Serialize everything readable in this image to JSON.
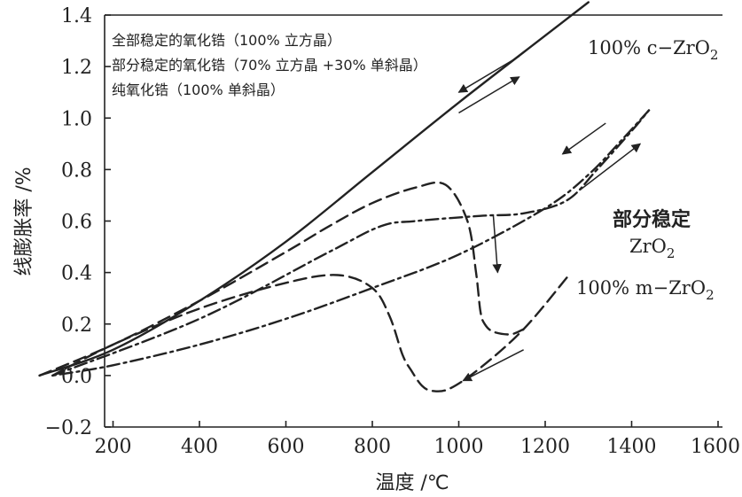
{
  "chart_data": {
    "type": "line",
    "title": "",
    "xlabel": "温度 /℃",
    "ylabel": "线膨胀率 /%",
    "xlim": [
      0,
      1600
    ],
    "ylim": [
      -0.2,
      1.4
    ],
    "x_ticks": [
      200,
      400,
      600,
      800,
      1000,
      1200,
      1400,
      1600
    ],
    "x_tick_labels": [
      "200",
      "400",
      "600",
      "800",
      "1000",
      "1200",
      "1400",
      "1600"
    ],
    "y_ticks": [
      -0.2,
      0.0,
      0.2,
      0.4,
      0.6,
      0.8,
      1.0,
      1.2,
      1.4
    ],
    "y_tick_labels": [
      "−0.2",
      "0.0",
      "0.2",
      "0.4",
      "0.6",
      "0.8",
      "1.0",
      "1.2",
      "1.4"
    ],
    "grid": false,
    "legend": {
      "placement": "top-left",
      "entries": [
        "全部稳定的氧化锆（100% 立方晶）",
        "部分稳定的氧化锆（70% 立方晶 +30%  单斜晶）",
        "纯氧化锆（100% 单斜晶）"
      ]
    },
    "annotations": {
      "cubic": "100% c−ZrO",
      "cubic_sub": "2",
      "partial_line1": "部分稳定",
      "partial_line2": "ZrO",
      "partial_sub": "2",
      "mono": "100% m−ZrO",
      "mono_sub": "2"
    },
    "series": [
      {
        "style": "solid",
        "x": [
          30,
          200,
          400,
          600,
          800,
          1000,
          1200,
          1300
        ],
        "y": [
          0.0,
          0.1,
          0.29,
          0.52,
          0.79,
          1.06,
          1.32,
          1.45
        ]
      },
      {
        "style": "dash-dot",
        "heating": {
          "x": [
            60,
            400,
            700,
            820,
            900,
            1050,
            1150,
            1250,
            1320,
            1400,
            1440
          ],
          "y": [
            0.0,
            0.22,
            0.48,
            0.58,
            0.6,
            0.62,
            0.63,
            0.68,
            0.8,
            0.95,
            1.03
          ]
        },
        "cooling": {
          "x": [
            1440,
            1380,
            1300,
            1200,
            1000,
            800,
            600,
            400,
            200,
            60
          ],
          "y": [
            1.03,
            0.92,
            0.78,
            0.65,
            0.47,
            0.34,
            0.22,
            0.12,
            0.04,
            0.0
          ]
        }
      },
      {
        "style": "dashed",
        "heating": {
          "x": [
            30,
            200,
            400,
            600,
            700,
            800,
            900,
            970,
            1020,
            1040,
            1050,
            1060,
            1080,
            1120,
            1150
          ],
          "y": [
            0.0,
            0.12,
            0.29,
            0.48,
            0.58,
            0.67,
            0.73,
            0.74,
            0.6,
            0.4,
            0.25,
            0.2,
            0.17,
            0.16,
            0.18
          ]
        },
        "cooling": {
          "x": [
            1250,
            1150,
            1050,
            980,
            940,
            915,
            890,
            870,
            840,
            800,
            720,
            600,
            400,
            200,
            60
          ],
          "y": [
            0.38,
            0.18,
            0.03,
            -0.05,
            -0.06,
            -0.04,
            0.02,
            0.08,
            0.23,
            0.34,
            0.39,
            0.36,
            0.26,
            0.12,
            0.0
          ]
        }
      }
    ]
  }
}
